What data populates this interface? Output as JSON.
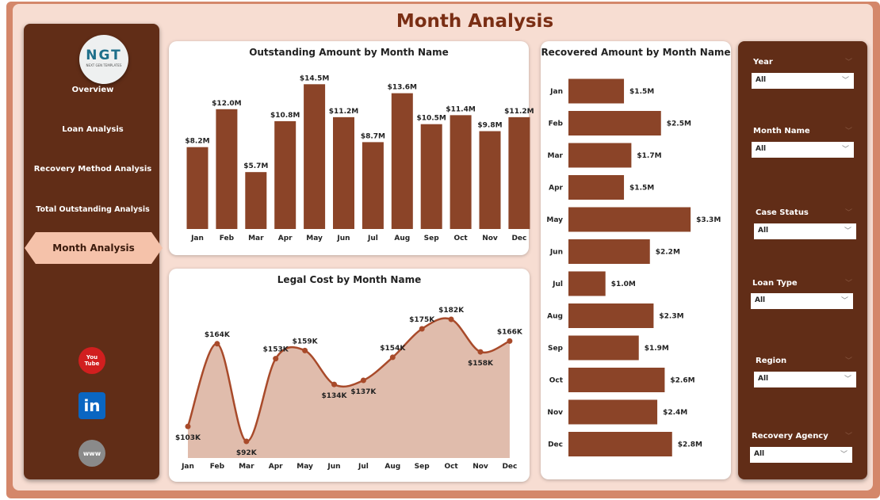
{
  "header": {
    "title": "Month Analysis"
  },
  "logo": {
    "text": "NGT",
    "sub": "NEXT GEN TEMPLATES"
  },
  "nav": {
    "items": [
      {
        "label": "Overview"
      },
      {
        "label": "Loan Analysis"
      },
      {
        "label": "Recovery Method Analysis"
      },
      {
        "label": "Total Outstanding Analysis"
      },
      {
        "label": "Month Analysis",
        "active": true
      }
    ],
    "social": [
      {
        "icon": "youtube-icon",
        "label": "You Tube",
        "color": "#d11f1f"
      },
      {
        "icon": "linkedin-icon",
        "label": "in",
        "color": "#0a66c2"
      },
      {
        "icon": "globe-icon",
        "label": "www",
        "color": "#8a8a8a"
      }
    ]
  },
  "colors": {
    "bar": "#8b4428",
    "area": "#e0bcac",
    "line": "#a84a2a"
  },
  "chart_data": [
    {
      "type": "bar",
      "title": "Outstanding Amount by Month Name",
      "categories": [
        "Jan",
        "Feb",
        "Mar",
        "Apr",
        "May",
        "Jun",
        "Jul",
        "Aug",
        "Sep",
        "Oct",
        "Nov",
        "Dec"
      ],
      "values": [
        8.2,
        12.0,
        5.7,
        10.8,
        14.5,
        11.2,
        8.7,
        13.6,
        10.5,
        11.4,
        9.8,
        11.2
      ],
      "labels": [
        "$8.2M",
        "$12.0M",
        "$5.7M",
        "$10.8M",
        "$14.5M",
        "$11.2M",
        "$8.7M",
        "$13.6M",
        "$10.5M",
        "$11.4M",
        "$9.8M",
        "$11.2M"
      ],
      "unit": "$M"
    },
    {
      "type": "area",
      "title": "Legal Cost by Month Name",
      "categories": [
        "Jan",
        "Feb",
        "Mar",
        "Apr",
        "May",
        "Jun",
        "Jul",
        "Aug",
        "Sep",
        "Oct",
        "Nov",
        "Dec"
      ],
      "values": [
        103,
        164,
        92,
        153,
        159,
        134,
        137,
        154,
        175,
        182,
        158,
        166
      ],
      "labels": [
        "$103K",
        "$164K",
        "$92K",
        "$153K",
        "$159K",
        "$134K",
        "$137K",
        "$154K",
        "$175K",
        "$182K",
        "$158K",
        "$166K"
      ],
      "unit": "$K"
    },
    {
      "type": "bar",
      "orientation": "horizontal",
      "title": "Recovered Amount by Month Name",
      "categories": [
        "Jan",
        "Feb",
        "Mar",
        "Apr",
        "May",
        "Jun",
        "Jul",
        "Aug",
        "Sep",
        "Oct",
        "Nov",
        "Dec"
      ],
      "values": [
        1.5,
        2.5,
        1.7,
        1.5,
        3.3,
        2.2,
        1.0,
        2.3,
        1.9,
        2.6,
        2.4,
        2.8
      ],
      "labels": [
        "$1.5M",
        "$2.5M",
        "$1.7M",
        "$1.5M",
        "$3.3M",
        "$2.2M",
        "$1.0M",
        "$2.3M",
        "$1.9M",
        "$2.6M",
        "$2.4M",
        "$2.8M"
      ],
      "unit": "$M"
    }
  ],
  "filters": [
    {
      "label": "Year",
      "value": "All"
    },
    {
      "label": "Month Name",
      "value": "All"
    },
    {
      "label": "Case Status",
      "value": "All"
    },
    {
      "label": "Loan Type",
      "value": "All"
    },
    {
      "label": "Region",
      "value": "All"
    },
    {
      "label": "Recovery Agency",
      "value": "All"
    }
  ]
}
